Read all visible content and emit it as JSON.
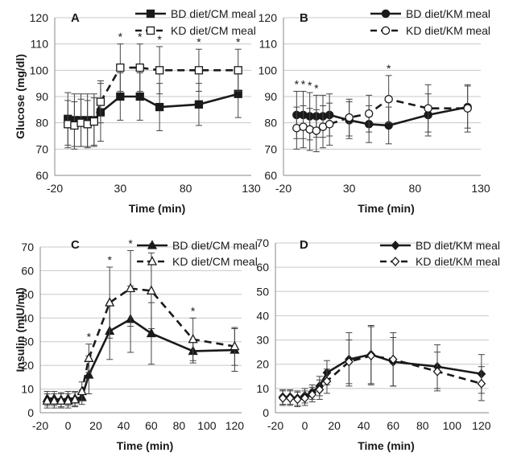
{
  "chart_data": [
    {
      "panel": "A",
      "type": "line",
      "xlabel": "Time (min)",
      "ylabel": "Glucose (mg/dl)",
      "xlim": [
        -20,
        130
      ],
      "ylim": [
        60,
        120
      ],
      "xticks": [
        -20,
        30,
        80,
        130
      ],
      "yticks": [
        60,
        70,
        80,
        90,
        100,
        110,
        120
      ],
      "legend_position": "top-right",
      "series": [
        {
          "name": "BD diet/CM meal",
          "marker": "square-filled",
          "dash": "solid",
          "points": [
            {
              "x": -10,
              "y": 81.5,
              "err": 10
            },
            {
              "x": -5,
              "y": 81,
              "err": 10
            },
            {
              "x": 0,
              "y": 81,
              "err": 10
            },
            {
              "x": 5,
              "y": 81,
              "err": 10
            },
            {
              "x": 10,
              "y": 81,
              "err": 10
            },
            {
              "x": 15,
              "y": 84,
              "err": 11
            },
            {
              "x": 30,
              "y": 90,
              "err": 9
            },
            {
              "x": 45,
              "y": 90,
              "err": 9
            },
            {
              "x": 60,
              "y": 86,
              "err": 9
            },
            {
              "x": 90,
              "y": 87,
              "err": 8
            },
            {
              "x": 120,
              "y": 91,
              "err": 9
            }
          ]
        },
        {
          "name": "KD diet/CM meal",
          "marker": "square-open",
          "dash": "dashed",
          "points": [
            {
              "x": -10,
              "y": 79.5,
              "err": 9
            },
            {
              "x": -5,
              "y": 79,
              "err": 9
            },
            {
              "x": 0,
              "y": 80,
              "err": 9
            },
            {
              "x": 5,
              "y": 79.5,
              "err": 9
            },
            {
              "x": 10,
              "y": 80.5,
              "err": 9
            },
            {
              "x": 15,
              "y": 88,
              "err": 8
            },
            {
              "x": 30,
              "y": 101,
              "err": 9
            },
            {
              "x": 45,
              "y": 101,
              "err": 9
            },
            {
              "x": 60,
              "y": 100,
              "err": 9
            },
            {
              "x": 90,
              "y": 100,
              "err": 8
            },
            {
              "x": 120,
              "y": 100,
              "err": 8
            }
          ]
        }
      ],
      "significance_x": [
        30,
        45,
        60,
        90,
        120
      ]
    },
    {
      "panel": "B",
      "type": "line",
      "xlabel": "Time (min)",
      "ylabel": "",
      "xlim": [
        -20,
        130
      ],
      "ylim": [
        60,
        120
      ],
      "xticks": [
        -20,
        30,
        80,
        130
      ],
      "yticks": [
        60,
        70,
        80,
        90,
        100,
        110,
        120
      ],
      "legend_position": "top-right",
      "series": [
        {
          "name": "BD diet/KM meal",
          "marker": "circle-filled",
          "dash": "solid",
          "points": [
            {
              "x": -10,
              "y": 83,
              "err": 9
            },
            {
              "x": -5,
              "y": 83,
              "err": 9
            },
            {
              "x": 0,
              "y": 82.5,
              "err": 9
            },
            {
              "x": 5,
              "y": 82.5,
              "err": 8
            },
            {
              "x": 10,
              "y": 82.5,
              "err": 8
            },
            {
              "x": 15,
              "y": 83,
              "err": 8
            },
            {
              "x": 30,
              "y": 81,
              "err": 7
            },
            {
              "x": 45,
              "y": 79.5,
              "err": 7
            },
            {
              "x": 60,
              "y": 79,
              "err": 7
            },
            {
              "x": 90,
              "y": 83,
              "err": 8
            },
            {
              "x": 120,
              "y": 86,
              "err": 8
            }
          ]
        },
        {
          "name": "KD diet/KM meal",
          "marker": "circle-open",
          "dash": "dashed",
          "points": [
            {
              "x": -10,
              "y": 78,
              "err": 8
            },
            {
              "x": -5,
              "y": 78.5,
              "err": 8
            },
            {
              "x": 0,
              "y": 77.5,
              "err": 8
            },
            {
              "x": 5,
              "y": 77,
              "err": 8
            },
            {
              "x": 10,
              "y": 78.5,
              "err": 8
            },
            {
              "x": 15,
              "y": 79.5,
              "err": 8
            },
            {
              "x": 30,
              "y": 82,
              "err": 7
            },
            {
              "x": 45,
              "y": 83.5,
              "err": 7
            },
            {
              "x": 60,
              "y": 89,
              "err": 9
            },
            {
              "x": 90,
              "y": 85.5,
              "err": 9
            },
            {
              "x": 120,
              "y": 85.5,
              "err": 9
            }
          ]
        }
      ],
      "significance_x": [
        -10,
        -5,
        0,
        5,
        60
      ]
    },
    {
      "panel": "C",
      "type": "line",
      "xlabel": "Time (min)",
      "ylabel": "Insulin (mIU/ml)",
      "xlim": [
        -20,
        125
      ],
      "ylim": [
        0,
        70
      ],
      "xticks": [
        -20,
        0,
        20,
        40,
        60,
        80,
        100,
        120
      ],
      "yticks": [
        0,
        10,
        20,
        30,
        40,
        50,
        60,
        70
      ],
      "legend_position": "top-right",
      "series": [
        {
          "name": "BD diet/CM meal",
          "marker": "triangle-filled",
          "dash": "solid",
          "points": [
            {
              "x": -15,
              "y": 6,
              "err": 3
            },
            {
              "x": -10,
              "y": 6,
              "err": 3
            },
            {
              "x": -5,
              "y": 5.5,
              "err": 3
            },
            {
              "x": 0,
              "y": 6,
              "err": 3
            },
            {
              "x": 5,
              "y": 6,
              "err": 3
            },
            {
              "x": 10,
              "y": 6.5,
              "err": 3
            },
            {
              "x": 15,
              "y": 16,
              "err": 8
            },
            {
              "x": 30,
              "y": 34.5,
              "err": 12
            },
            {
              "x": 45,
              "y": 39.5,
              "err": 14
            },
            {
              "x": 60,
              "y": 33.5,
              "err": 13
            },
            {
              "x": 90,
              "y": 26,
              "err": 5
            },
            {
              "x": 120,
              "y": 26.5,
              "err": 9
            }
          ]
        },
        {
          "name": "KD diet/CM meal",
          "marker": "triangle-open",
          "dash": "dashed",
          "points": [
            {
              "x": -15,
              "y": 5,
              "err": 3
            },
            {
              "x": -10,
              "y": 5,
              "err": 3
            },
            {
              "x": -5,
              "y": 5,
              "err": 3
            },
            {
              "x": 0,
              "y": 5,
              "err": 3
            },
            {
              "x": 5,
              "y": 5.5,
              "err": 3
            },
            {
              "x": 10,
              "y": 9,
              "err": 4
            },
            {
              "x": 15,
              "y": 23,
              "err": 6
            },
            {
              "x": 30,
              "y": 46.5,
              "err": 15
            },
            {
              "x": 45,
              "y": 52.5,
              "err": 16
            },
            {
              "x": 60,
              "y": 51.5,
              "err": 16
            },
            {
              "x": 90,
              "y": 31,
              "err": 9
            },
            {
              "x": 120,
              "y": 28,
              "err": 8
            }
          ]
        }
      ],
      "significance_x": [
        15,
        30,
        45,
        60,
        90
      ]
    },
    {
      "panel": "D",
      "type": "line",
      "xlabel": "Time (min)",
      "ylabel": "",
      "xlim": [
        -20,
        125
      ],
      "ylim": [
        0,
        70
      ],
      "xticks": [
        -20,
        0,
        20,
        40,
        60,
        80,
        100,
        120
      ],
      "yticks": [
        0,
        10,
        20,
        30,
        40,
        50,
        60,
        70
      ],
      "legend_position": "top-right",
      "series": [
        {
          "name": "BD diet/KM meal",
          "marker": "diamond-filled",
          "dash": "solid",
          "points": [
            {
              "x": -15,
              "y": 6.5,
              "err": 3
            },
            {
              "x": -10,
              "y": 6.5,
              "err": 3
            },
            {
              "x": -5,
              "y": 6,
              "err": 3
            },
            {
              "x": 0,
              "y": 7,
              "err": 3
            },
            {
              "x": 5,
              "y": 8.5,
              "err": 3
            },
            {
              "x": 10,
              "y": 11,
              "err": 4
            },
            {
              "x": 15,
              "y": 16.5,
              "err": 5
            },
            {
              "x": 30,
              "y": 22,
              "err": 11
            },
            {
              "x": 45,
              "y": 24,
              "err": 12
            },
            {
              "x": 60,
              "y": 21,
              "err": 10
            },
            {
              "x": 90,
              "y": 19,
              "err": 9
            },
            {
              "x": 120,
              "y": 16,
              "err": 8
            }
          ]
        },
        {
          "name": "KD diet/KM meal",
          "marker": "diamond-open",
          "dash": "dashed",
          "points": [
            {
              "x": -15,
              "y": 6,
              "err": 3
            },
            {
              "x": -10,
              "y": 6,
              "err": 3
            },
            {
              "x": -5,
              "y": 5.5,
              "err": 3
            },
            {
              "x": 0,
              "y": 6,
              "err": 3
            },
            {
              "x": 5,
              "y": 7.5,
              "err": 3
            },
            {
              "x": 10,
              "y": 9.5,
              "err": 4
            },
            {
              "x": 15,
              "y": 13,
              "err": 5
            },
            {
              "x": 30,
              "y": 21,
              "err": 9
            },
            {
              "x": 45,
              "y": 23.5,
              "err": 12
            },
            {
              "x": 60,
              "y": 22,
              "err": 11
            },
            {
              "x": 90,
              "y": 17,
              "err": 8
            },
            {
              "x": 120,
              "y": 12,
              "err": 7
            }
          ]
        }
      ],
      "significance_x": []
    }
  ],
  "significance_symbol": "*",
  "colors": {
    "ink": "#1a1a1a",
    "grid": "#c8c8c8",
    "background": "#ffffff"
  }
}
